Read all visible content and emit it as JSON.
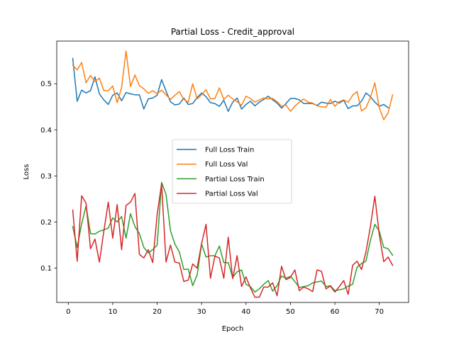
{
  "chart_data": {
    "type": "line",
    "title": "Partial Loss - Credit_approval",
    "xlabel": "Epoch",
    "ylabel": "Loss",
    "xlim": [
      -2.6,
      76.6
    ],
    "ylim": [
      0.0255,
      0.5925
    ],
    "xticks": [
      0,
      10,
      20,
      30,
      40,
      50,
      60,
      70
    ],
    "yticks": [
      0.1,
      0.2,
      0.3,
      0.4,
      0.5
    ],
    "ytick_labels": [
      "0.1",
      "0.2",
      "0.3",
      "0.4",
      "0.5"
    ],
    "grid": false,
    "legend_position": "center-right",
    "series": [
      {
        "name": "Full Loss Train",
        "color": "#1f77b4",
        "x_start": 1,
        "values": [
          0.555,
          0.462,
          0.486,
          0.48,
          0.485,
          0.515,
          0.478,
          0.465,
          0.455,
          0.475,
          0.48,
          0.463,
          0.481,
          0.478,
          0.476,
          0.476,
          0.445,
          0.467,
          0.469,
          0.475,
          0.509,
          0.484,
          0.461,
          0.454,
          0.456,
          0.469,
          0.455,
          0.457,
          0.47,
          0.48,
          0.472,
          0.459,
          0.457,
          0.451,
          0.464,
          0.44,
          0.46,
          0.469,
          0.445,
          0.455,
          0.462,
          0.452,
          0.46,
          0.466,
          0.473,
          0.465,
          0.458,
          0.447,
          0.457,
          0.468,
          0.468,
          0.465,
          0.457,
          0.457,
          0.457,
          0.453,
          0.46,
          0.458,
          0.457,
          0.462,
          0.458,
          0.464,
          0.446,
          0.452,
          0.452,
          0.462,
          0.48,
          0.472,
          0.46,
          0.451,
          0.455,
          0.448
        ]
      },
      {
        "name": "Full Loss Val",
        "color": "#ff7f0e",
        "x_start": 1,
        "values": [
          0.54,
          0.53,
          0.546,
          0.502,
          0.518,
          0.505,
          0.512,
          0.485,
          0.485,
          0.495,
          0.459,
          0.492,
          0.571,
          0.494,
          0.519,
          0.496,
          0.489,
          0.479,
          0.485,
          0.478,
          0.486,
          0.476,
          0.466,
          0.475,
          0.483,
          0.466,
          0.46,
          0.5,
          0.467,
          0.476,
          0.487,
          0.467,
          0.468,
          0.491,
          0.466,
          0.475,
          0.467,
          0.461,
          0.453,
          0.473,
          0.468,
          0.46,
          0.465,
          0.469,
          0.467,
          0.468,
          0.461,
          0.451,
          0.454,
          0.44,
          0.451,
          0.46,
          0.467,
          0.46,
          0.458,
          0.452,
          0.45,
          0.449,
          0.466,
          0.451,
          0.461,
          0.465,
          0.46,
          0.475,
          0.483,
          0.441,
          0.448,
          0.47,
          0.502,
          0.448,
          0.422,
          0.437,
          0.476
        ]
      },
      {
        "name": "Partial Loss Train",
        "color": "#2ca02c",
        "x_start": 1,
        "values": [
          0.19,
          0.145,
          0.196,
          0.235,
          0.175,
          0.174,
          0.18,
          0.183,
          0.187,
          0.209,
          0.2,
          0.212,
          0.165,
          0.218,
          0.19,
          0.175,
          0.145,
          0.133,
          0.14,
          0.15,
          0.286,
          0.26,
          0.181,
          0.152,
          0.135,
          0.097,
          0.098,
          0.062,
          0.085,
          0.152,
          0.124,
          0.127,
          0.127,
          0.148,
          0.112,
          0.112,
          0.08,
          0.092,
          0.096,
          0.065,
          0.06,
          0.048,
          0.055,
          0.065,
          0.073,
          0.05,
          0.062,
          0.083,
          0.078,
          0.082,
          0.071,
          0.058,
          0.06,
          0.062,
          0.068,
          0.07,
          0.072,
          0.06,
          0.062,
          0.051,
          0.053,
          0.055,
          0.061,
          0.065,
          0.102,
          0.11,
          0.115,
          0.16,
          0.195,
          0.18,
          0.145,
          0.142,
          0.128
        ]
      },
      {
        "name": "Partial Loss Val",
        "color": "#d62728",
        "x_start": 1,
        "values": [
          0.226,
          0.115,
          0.257,
          0.241,
          0.142,
          0.163,
          0.113,
          0.18,
          0.243,
          0.165,
          0.238,
          0.14,
          0.236,
          0.243,
          0.262,
          0.13,
          0.122,
          0.14,
          0.112,
          0.216,
          0.283,
          0.113,
          0.15,
          0.113,
          0.111,
          0.071,
          0.074,
          0.109,
          0.1,
          0.153,
          0.195,
          0.078,
          0.126,
          0.122,
          0.078,
          0.167,
          0.077,
          0.127,
          0.06,
          0.081,
          0.057,
          0.037,
          0.037,
          0.059,
          0.059,
          0.068,
          0.04,
          0.104,
          0.075,
          0.08,
          0.096,
          0.051,
          0.059,
          0.055,
          0.049,
          0.096,
          0.093,
          0.055,
          0.061,
          0.048,
          0.06,
          0.073,
          0.043,
          0.106,
          0.115,
          0.097,
          0.135,
          0.19,
          0.256,
          0.173,
          0.114,
          0.124,
          0.106
        ]
      }
    ]
  }
}
